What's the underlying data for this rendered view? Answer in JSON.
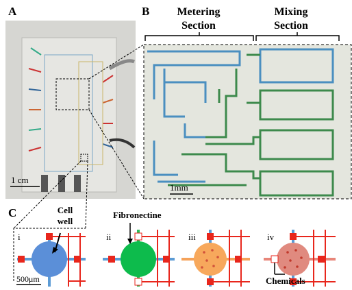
{
  "panels": {
    "a": {
      "label": "A",
      "scale": "1 cm"
    },
    "b": {
      "label": "B",
      "sections": [
        {
          "title": [
            "Metering",
            "Section"
          ]
        },
        {
          "title": [
            "Mixing",
            "Section"
          ]
        }
      ],
      "scale": "1mm"
    },
    "c": {
      "label": "C",
      "steps": [
        {
          "label": "i",
          "annotation": [
            "Cell",
            "well"
          ],
          "scale": "500μm"
        },
        {
          "label": "ii",
          "annotation": "Fibronectine"
        },
        {
          "label": "iii"
        },
        {
          "label": "iv",
          "annotation": "Chemicals"
        }
      ]
    }
  }
}
